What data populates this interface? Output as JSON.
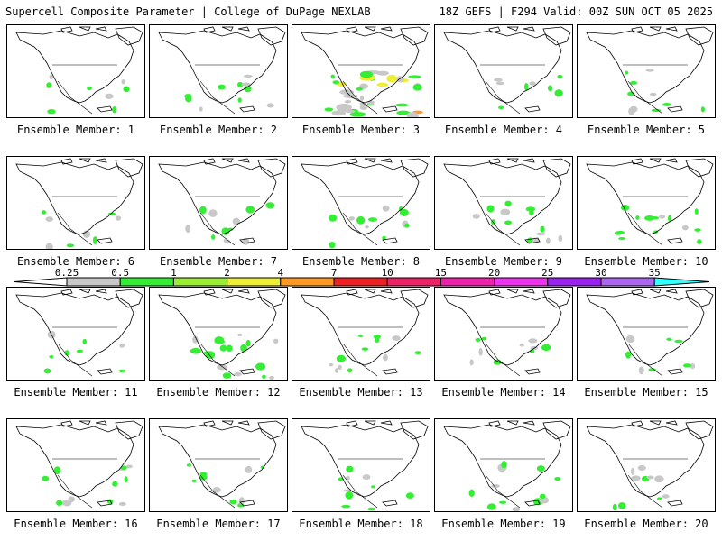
{
  "header": {
    "left": "Supercell Composite Parameter | College of DuPage NEXLAB",
    "right": "18Z GEFS | F294 Valid: 00Z SUN OCT 05 2025"
  },
  "members": [
    "Ensemble Member: 1",
    "Ensemble Member: 2",
    "Ensemble Member: 3",
    "Ensemble Member: 4",
    "Ensemble Member: 5",
    "Ensemble Member: 6",
    "Ensemble Member: 7",
    "Ensemble Member: 8",
    "Ensemble Member: 9",
    "Ensemble Member: 10",
    "Ensemble Member: 11",
    "Ensemble Member: 12",
    "Ensemble Member: 13",
    "Ensemble Member: 14",
    "Ensemble Member: 15",
    "Ensemble Member: 16",
    "Ensemble Member: 17",
    "Ensemble Member: 18",
    "Ensemble Member: 19",
    "Ensemble Member: 20"
  ],
  "colorbar": {
    "ticks": [
      "0.25",
      "0.5",
      "1",
      "2",
      "4",
      "7",
      "10",
      "15",
      "20",
      "25",
      "30",
      "35"
    ],
    "colors": [
      "#c8c8c8",
      "#33ee33",
      "#99ee33",
      "#eeee33",
      "#ff9922",
      "#ee2222",
      "#ee2266",
      "#ee22aa",
      "#ee33ee",
      "#9922ee",
      "#aa66ee",
      "#33ffff"
    ]
  },
  "activity_level": [
    0.1,
    0.15,
    0.85,
    0.1,
    0.15,
    0.1,
    0.2,
    0.2,
    0.25,
    0.25,
    0.1,
    0.35,
    0.2,
    0.15,
    0.1,
    0.2,
    0.15,
    0.15,
    0.2,
    0.15
  ]
}
